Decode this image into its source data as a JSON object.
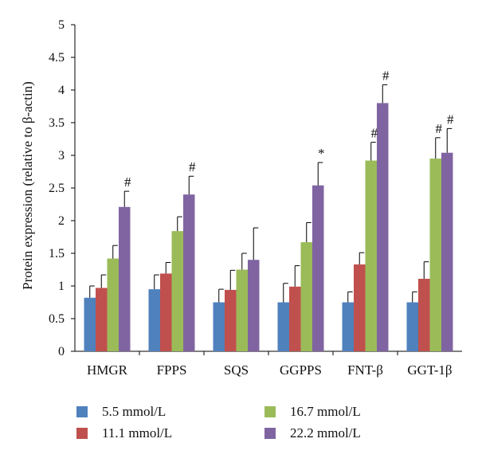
{
  "chart_data": {
    "type": "bar",
    "title": "",
    "xlabel": "",
    "ylabel": "Protein expression (relative to β-actin)",
    "ylim": [
      0,
      5
    ],
    "yticks": [
      "0",
      "0.5",
      "1",
      "1.5",
      "2",
      "2.5",
      "3",
      "3.5",
      "4",
      "4.5",
      "5"
    ],
    "categories": [
      "HMGR",
      "FPPS",
      "SQS",
      "GGPPS",
      "FNT-β",
      "GGT-1β"
    ],
    "grid": false,
    "legend_position": "bottom",
    "series": [
      {
        "name": "5.5 mmol/L",
        "color": "#4f81bd",
        "values": [
          0.82,
          0.95,
          0.75,
          0.75,
          0.75,
          0.75
        ],
        "errors": [
          0.18,
          0.22,
          0.2,
          0.29,
          0.16,
          0.16
        ],
        "marks": [
          "",
          "",
          "",
          "",
          "",
          ""
        ]
      },
      {
        "name": "11.1 mmol/L",
        "color": "#c0504d",
        "values": [
          0.97,
          1.19,
          0.94,
          0.99,
          1.33,
          1.11
        ],
        "errors": [
          0.2,
          0.17,
          0.3,
          0.32,
          0.18,
          0.26
        ],
        "marks": [
          "",
          "",
          "",
          "",
          "",
          ""
        ]
      },
      {
        "name": "16.7 mmol/L",
        "color": "#9bbb59",
        "values": [
          1.42,
          1.84,
          1.25,
          1.67,
          2.92,
          2.95
        ],
        "errors": [
          0.2,
          0.22,
          0.25,
          0.3,
          0.28,
          0.32
        ],
        "marks": [
          "",
          "",
          "",
          "",
          "#",
          "#"
        ]
      },
      {
        "name": "22.2 mmol/L",
        "color": "#8064a2",
        "values": [
          2.21,
          2.4,
          1.4,
          2.54,
          3.8,
          3.04
        ],
        "errors": [
          0.24,
          0.28,
          0.49,
          0.35,
          0.28,
          0.37
        ],
        "marks": [
          "#",
          "#",
          "",
          "*",
          "#",
          "#"
        ]
      }
    ]
  }
}
